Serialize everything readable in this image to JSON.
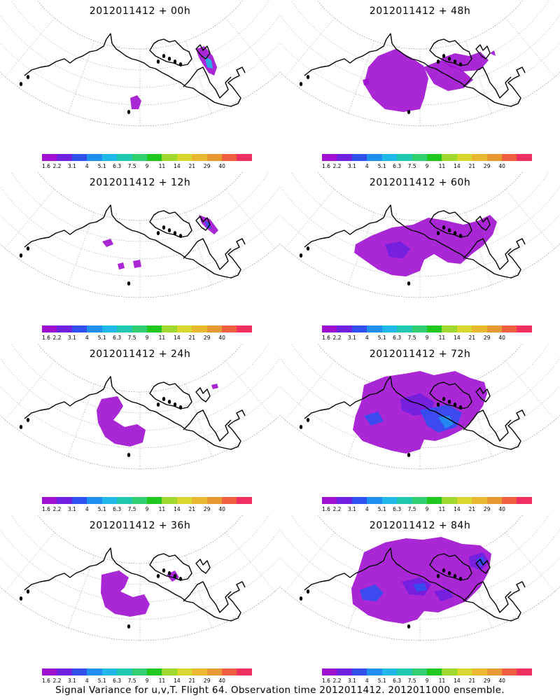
{
  "footer": "Signal Variance for u,v,T. Flight 64. Observation time 2012011412. 2012011000 ensemble.",
  "legend": {
    "labels": [
      "1.6",
      "2.2",
      "3.1",
      "4",
      "5.1",
      "6.3",
      "7.5",
      "9",
      "11",
      "14",
      "21",
      "29",
      "40"
    ],
    "colors": [
      "#a010d0",
      "#7020e0",
      "#3050f0",
      "#2090f0",
      "#20b8e8",
      "#20c8b0",
      "#30d070",
      "#20c820",
      "#a0d830",
      "#d8d830",
      "#e8b830",
      "#e89830",
      "#f06040",
      "#f03060"
    ]
  },
  "panels": [
    {
      "title": "2012011412 + 00h"
    },
    {
      "title": "2012011412 + 48h"
    },
    {
      "title": "2012011412 + 12h"
    },
    {
      "title": "2012011412 + 60h"
    },
    {
      "title": "2012011412 + 24h"
    },
    {
      "title": "2012011412 + 72h"
    },
    {
      "title": "2012011412 + 36h"
    },
    {
      "title": "2012011412 + 84h"
    }
  ]
}
